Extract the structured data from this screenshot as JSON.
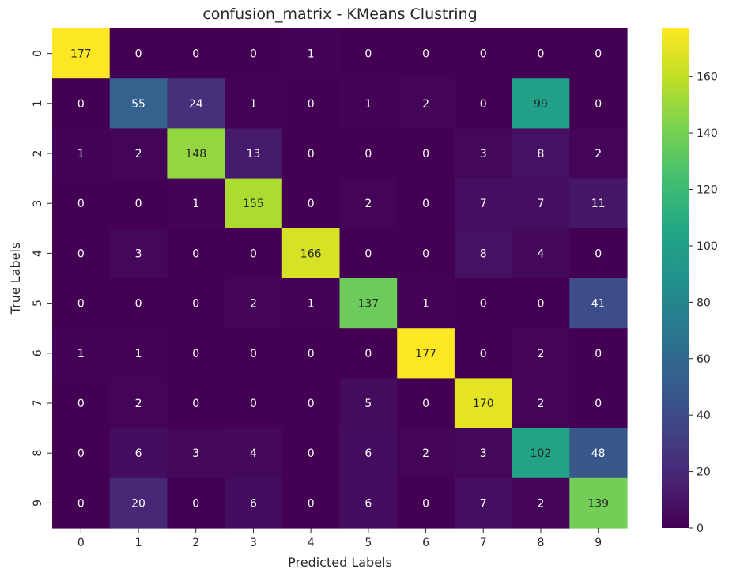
{
  "chart_data": {
    "type": "heatmap",
    "title": "confusion_matrix - KMeans Clustring",
    "xlabel": "Predicted Labels",
    "ylabel": "True Labels",
    "x_tick_labels": [
      "0",
      "1",
      "2",
      "3",
      "4",
      "5",
      "6",
      "7",
      "8",
      "9"
    ],
    "y_tick_labels": [
      "0",
      "1",
      "2",
      "3",
      "4",
      "5",
      "6",
      "7",
      "8",
      "9"
    ],
    "matrix": [
      [
        177,
        0,
        0,
        0,
        1,
        0,
        0,
        0,
        0,
        0
      ],
      [
        0,
        55,
        24,
        1,
        0,
        1,
        2,
        0,
        99,
        0
      ],
      [
        1,
        2,
        148,
        13,
        0,
        0,
        0,
        3,
        8,
        2
      ],
      [
        0,
        0,
        1,
        155,
        0,
        2,
        0,
        7,
        7,
        11
      ],
      [
        0,
        3,
        0,
        0,
        166,
        0,
        0,
        8,
        4,
        0
      ],
      [
        0,
        0,
        0,
        2,
        1,
        137,
        1,
        0,
        0,
        41
      ],
      [
        1,
        1,
        0,
        0,
        0,
        0,
        177,
        0,
        2,
        0
      ],
      [
        0,
        2,
        0,
        0,
        0,
        5,
        0,
        170,
        2,
        0
      ],
      [
        0,
        6,
        3,
        4,
        0,
        6,
        2,
        3,
        102,
        48
      ],
      [
        0,
        20,
        0,
        6,
        0,
        6,
        0,
        7,
        2,
        139
      ]
    ],
    "colormap": "viridis",
    "colorbar": {
      "range": [
        0,
        177
      ],
      "ticks": [
        0,
        20,
        40,
        60,
        80,
        100,
        120,
        140,
        160
      ],
      "tick_labels": [
        "0",
        "20",
        "40",
        "60",
        "80",
        "100",
        "120",
        "140",
        "160"
      ]
    },
    "annotation_colors": {
      "on_dark": "#ffffff",
      "on_light": "#262626"
    }
  }
}
